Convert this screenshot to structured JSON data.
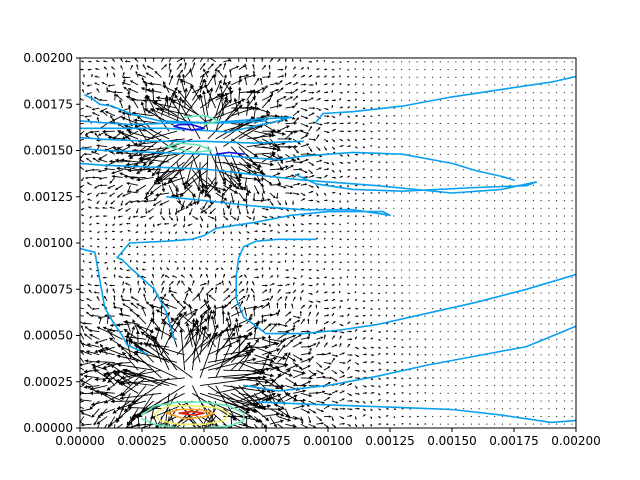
{
  "chart_data": {
    "type": "quiver_contour",
    "title": "",
    "xlabel": "",
    "ylabel": "",
    "xlim": [
      0,
      0.002
    ],
    "ylim": [
      0,
      0.002
    ],
    "grid": false,
    "legend": "none",
    "x_ticks": [
      "0.00000",
      "0.00025",
      "0.00050",
      "0.00075",
      "0.00100",
      "0.00125",
      "0.00150",
      "0.00175",
      "0.00200"
    ],
    "y_ticks": [
      "0.00000",
      "0.00025",
      "0.00050",
      "0.00075",
      "0.00100",
      "0.00125",
      "0.00150",
      "0.00175",
      "0.00200"
    ],
    "contour_colors": {
      "low_blue": "#1010e0",
      "mid_blue": "#0aa0f0",
      "cyan_green": "#60e8b0",
      "yellow": "#f0f060",
      "orange": "#f8a020",
      "red": "#e02010"
    },
    "contours": [
      {
        "level": "mid_blue",
        "points": [
          [
            2e-05,
            0.0018
          ],
          [
            5e-05,
            0.00178
          ],
          [
            8e-05,
            0.00175
          ],
          [
            0.00013,
            0.00174
          ],
          [
            0.0002,
            0.0017
          ],
          [
            0.00032,
            0.00166
          ],
          [
            0.00052,
            0.00165
          ],
          [
            0.00072,
            0.00167
          ],
          [
            0.00085,
            0.00168
          ],
          [
            0.0008,
            0.00166
          ],
          [
            0.0006,
            0.0016
          ],
          [
            0.00035,
            0.00162
          ],
          [
            0.0002,
            0.00162
          ],
          [
            0.0001,
            0.00162
          ],
          [
            0.0,
            0.00162
          ]
        ]
      },
      {
        "level": "mid_blue",
        "points": [
          [
            0.0,
            0.00166
          ],
          [
            0.0001,
            0.00165
          ],
          [
            0.0002,
            0.00164
          ],
          [
            0.0004,
            0.00165
          ],
          [
            0.0006,
            0.00165
          ],
          [
            0.00075,
            0.00166
          ]
        ]
      },
      {
        "level": "mid_blue",
        "points": [
          [
            0.0,
            0.00143
          ],
          [
            0.0001,
            0.00142
          ],
          [
            0.0003,
            0.00141
          ],
          [
            0.0005,
            0.0014
          ],
          [
            0.0007,
            0.00137
          ],
          [
            0.0009,
            0.00134
          ],
          [
            0.0012,
            0.00131
          ],
          [
            0.0015,
            0.00127
          ],
          [
            0.0017,
            0.00129
          ],
          [
            0.00184,
            0.00133
          ],
          [
            0.0018,
            0.00131
          ],
          [
            0.0016,
            0.0013
          ],
          [
            0.0013,
            0.00128
          ],
          [
            0.0011,
            0.00129
          ],
          [
            0.00095,
            0.00132
          ],
          [
            0.00087,
            0.00137
          ]
        ]
      },
      {
        "level": "mid_blue",
        "points": [
          [
            0.0,
            0.00151
          ],
          [
            0.0001,
            0.0015
          ],
          [
            0.0003,
            0.00149
          ],
          [
            0.0005,
            0.00148
          ],
          [
            0.0007,
            0.00146
          ],
          [
            0.0008,
            0.00145
          ],
          [
            0.0009,
            0.00147
          ],
          [
            0.0011,
            0.00149
          ],
          [
            0.0013,
            0.00148
          ],
          [
            0.0015,
            0.00143
          ],
          [
            0.0016,
            0.00139
          ],
          [
            0.0017,
            0.00136
          ],
          [
            0.00175,
            0.00134
          ]
        ]
      },
      {
        "level": "mid_blue",
        "points": [
          [
            0.0,
            0.00157
          ],
          [
            0.0001,
            0.00156
          ],
          [
            0.0003,
            0.00155
          ],
          [
            0.0005,
            0.00155
          ],
          [
            0.0007,
            0.00154
          ],
          [
            0.0009,
            0.00155
          ]
        ]
      },
      {
        "level": "mid_blue",
        "points": [
          [
            0.00095,
            0.00165
          ],
          [
            0.00098,
            0.0017
          ],
          [
            0.0011,
            0.00171
          ],
          [
            0.0013,
            0.00174
          ],
          [
            0.0015,
            0.00179
          ],
          [
            0.0017,
            0.00183
          ],
          [
            0.0019,
            0.00187
          ],
          [
            0.002,
            0.0019
          ]
        ]
      },
      {
        "level": "mid_blue",
        "points": [
          [
            0.00035,
            0.00125
          ],
          [
            0.0005,
            0.00123
          ],
          [
            0.0007,
            0.0012
          ],
          [
            0.0009,
            0.00118
          ],
          [
            0.0011,
            0.00118
          ],
          [
            0.00125,
            0.00115
          ],
          [
            0.00122,
            0.00117
          ],
          [
            0.001,
            0.00117
          ],
          [
            0.00085,
            0.00115
          ],
          [
            0.0007,
            0.00111
          ],
          [
            0.00055,
            0.00108
          ],
          [
            0.0005,
            0.00104
          ],
          [
            0.00045,
            0.00102
          ],
          [
            0.00035,
            0.00101
          ],
          [
            0.0002,
            0.001
          ],
          [
            0.00015,
            0.00092
          ],
          [
            0.00017,
            0.00091
          ],
          [
            0.0002,
            0.00087
          ],
          [
            0.0003,
            0.00075
          ],
          [
            0.00035,
            0.00062
          ],
          [
            0.00038,
            0.00048
          ]
        ]
      },
      {
        "level": "mid_blue",
        "points": [
          [
            0.00095,
            0.00102
          ],
          [
            0.0008,
            0.00102
          ],
          [
            0.00071,
            0.00101
          ],
          [
            0.00066,
            0.00098
          ],
          [
            0.00064,
            0.00092
          ],
          [
            0.00063,
            0.00082
          ],
          [
            0.00063,
            0.0007
          ],
          [
            0.00066,
            0.0006
          ],
          [
            0.00075,
            0.00051
          ],
          [
            0.0009,
            0.00051
          ],
          [
            0.00105,
            0.00053
          ],
          [
            0.0012,
            0.00056
          ],
          [
            0.0014,
            0.00062
          ],
          [
            0.0016,
            0.00068
          ],
          [
            0.0018,
            0.00075
          ],
          [
            0.002,
            0.00083
          ]
        ]
      },
      {
        "level": "mid_blue",
        "points": [
          [
            0.0,
            0.00097
          ],
          [
            6e-05,
            0.00095
          ],
          [
            8e-05,
            0.0008
          ],
          [
            0.0001,
            0.00065
          ],
          [
            0.00013,
            0.00058
          ],
          [
            0.00017,
            0.0005
          ],
          [
            0.00019,
            0.00045
          ],
          [
            0.00027,
            0.0004
          ]
        ]
      },
      {
        "level": "mid_blue",
        "points": [
          [
            0.00066,
            0.00023
          ],
          [
            0.0008,
            0.0002
          ],
          [
            0.001,
            0.00023
          ],
          [
            0.0012,
            0.00028
          ],
          [
            0.0014,
            0.00034
          ],
          [
            0.0016,
            0.00039
          ],
          [
            0.0018,
            0.00044
          ],
          [
            0.002,
            0.00055
          ]
        ]
      },
      {
        "level": "mid_blue",
        "points": [
          [
            0.00072,
            0.00014
          ],
          [
            0.0009,
            0.00013
          ],
          [
            0.0011,
            0.00012
          ],
          [
            0.0013,
            0.00011
          ],
          [
            0.0015,
            0.0001
          ],
          [
            0.0017,
            7e-05
          ],
          [
            0.0019,
            3e-05
          ],
          [
            0.002,
            4e-05
          ]
        ]
      },
      {
        "level": "low_blue",
        "points": [
          [
            0.00038,
            0.00163
          ],
          [
            0.0004,
            0.00164
          ],
          [
            0.00045,
            0.00164
          ],
          [
            0.0005,
            0.00162
          ],
          [
            0.00045,
            0.00161
          ],
          [
            0.00038,
            0.00163
          ]
        ]
      },
      {
        "level": "low_blue",
        "points": [
          [
            0.00055,
            0.00148
          ],
          [
            0.0006,
            0.00149
          ],
          [
            0.00066,
            0.00148
          ]
        ]
      },
      {
        "level": "cyan_green",
        "points": [
          [
            0.00042,
            0.00168
          ],
          [
            0.0005,
            0.00169
          ],
          [
            0.00056,
            0.00166
          ],
          [
            0.0005,
            0.00164
          ]
        ]
      },
      {
        "level": "cyan_green",
        "points": [
          [
            0.00035,
            0.00152
          ],
          [
            0.0004,
            0.00154
          ],
          [
            0.00048,
            0.00153
          ],
          [
            0.00053,
            0.0015
          ],
          [
            0.00046,
            0.00149
          ],
          [
            0.00035,
            0.00152
          ]
        ]
      },
      {
        "level": "cyan_green",
        "points": [
          [
            0.00025,
            7e-05
          ],
          [
            0.0003,
            0.00012
          ],
          [
            0.0004,
            0.00014
          ],
          [
            0.0005,
            0.00014
          ],
          [
            0.0006,
            0.00012
          ],
          [
            0.00066,
            8e-05
          ],
          [
            0.00066,
            4e-05
          ],
          [
            0.0006,
            1e-05
          ],
          [
            0.0005,
            0.0
          ],
          [
            0.0004,
            0.0
          ],
          [
            0.0003,
            2e-05
          ],
          [
            0.00025,
            5e-05
          ]
        ]
      },
      {
        "level": "yellow",
        "points": [
          [
            0.0003,
            8e-05
          ],
          [
            0.00036,
            0.00012
          ],
          [
            0.00045,
            0.00012
          ],
          [
            0.00055,
            0.00011
          ],
          [
            0.0006,
            8e-05
          ],
          [
            0.00058,
            4e-05
          ],
          [
            0.0005,
            2e-05
          ],
          [
            0.0004,
            2e-05
          ],
          [
            0.00032,
            4e-05
          ],
          [
            0.0003,
            8e-05
          ]
        ]
      },
      {
        "level": "orange",
        "points": [
          [
            0.00035,
            8e-05
          ],
          [
            0.0004,
            0.0001
          ],
          [
            0.00048,
            0.0001
          ],
          [
            0.00054,
            8e-05
          ],
          [
            0.0005,
            6e-05
          ],
          [
            0.00042,
            5e-05
          ],
          [
            0.00035,
            8e-05
          ]
        ]
      },
      {
        "level": "red",
        "points": [
          [
            0.0004,
            8e-05
          ],
          [
            0.00045,
            9e-05
          ],
          [
            0.0005,
            8e-05
          ],
          [
            0.00046,
            7e-05
          ],
          [
            0.0004,
            8e-05
          ]
        ]
      }
    ],
    "vector_field": {
      "grid_nx": 64,
      "grid_ny": 48,
      "sources": [
        {
          "x": 0.00048,
          "y": 0.00155,
          "strength": 0.00028,
          "radius": 0.0002
        },
        {
          "x": 0.00045,
          "y": 0.00025,
          "strength": 0.0003,
          "radius": 0.00024
        }
      ]
    }
  }
}
